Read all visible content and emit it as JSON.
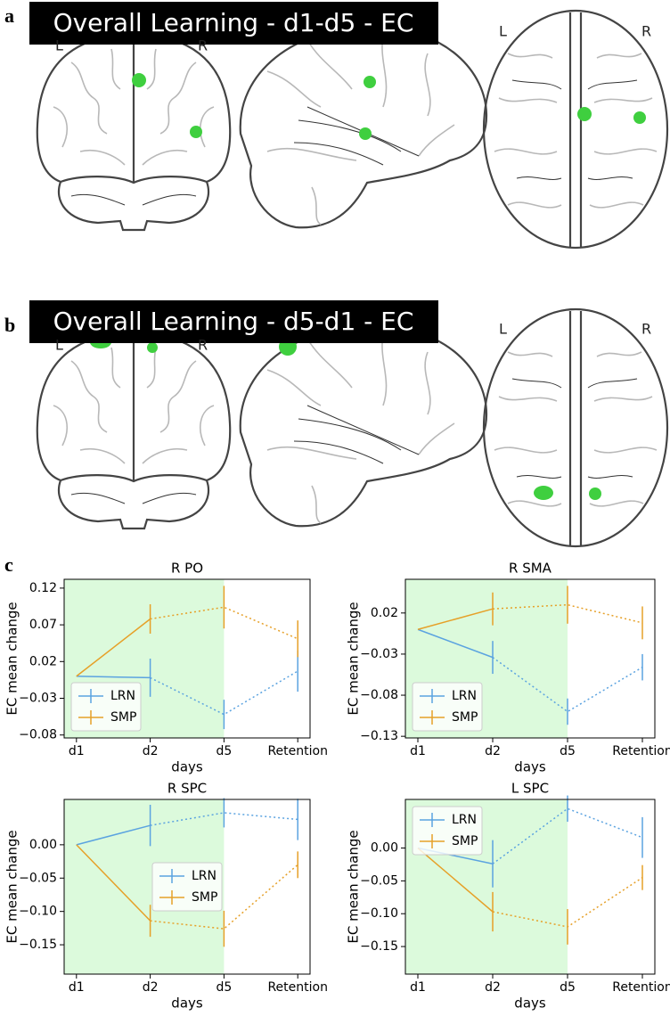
{
  "panels": [
    {
      "label": "a",
      "title": "Overall Learning - d1-d5 - EC",
      "coronal": [
        "L",
        "R"
      ],
      "axial": [
        "L",
        "R"
      ]
    },
    {
      "label": "b",
      "title": "Overall Learning - d5-d1 - EC",
      "coronal": [
        "L",
        "R"
      ],
      "axial": [
        "L",
        "R"
      ]
    },
    {
      "label": "c"
    }
  ],
  "chart_data": [
    {
      "type": "line",
      "title": "R PO",
      "xlabel": "days",
      "ylabel": "EC mean change",
      "categories": [
        "d1",
        "d2",
        "d5",
        "Retention"
      ],
      "ylim": [
        -0.084,
        0.132
      ],
      "yticks": [
        0.12,
        0.07,
        0.02,
        {
          "value": -0.03,
          "label": "−0.03"
        },
        {
          "value": -0.08,
          "label": "−0.08"
        }
      ],
      "legend": "lower left",
      "series": [
        {
          "name": "LRN",
          "color": "#5ba3e0",
          "values": [
            0.0,
            -0.002,
            -0.052,
            0.007
          ],
          "errors": [
            null,
            0.026,
            0.02,
            0.028
          ]
        },
        {
          "name": "SMP",
          "color": "#e6a028",
          "values": [
            0.0,
            0.078,
            0.094,
            0.051
          ],
          "errors": [
            null,
            0.02,
            0.029,
            0.025
          ]
        }
      ]
    },
    {
      "type": "line",
      "title": "R SMA",
      "xlabel": "days",
      "ylabel": "EC mean change",
      "categories": [
        "d1",
        "d2",
        "d5",
        "Retention"
      ],
      "ylim": [
        -0.132,
        0.061
      ],
      "yticks": [
        0.02,
        {
          "value": -0.03,
          "label": "−0.03"
        },
        {
          "value": -0.08,
          "label": "−0.08"
        },
        {
          "value": -0.13,
          "label": "−0.13"
        }
      ],
      "legend": "lower left",
      "series": [
        {
          "name": "LRN",
          "color": "#5ba3e0",
          "values": [
            0.0,
            -0.034,
            -0.1,
            -0.046
          ],
          "errors": [
            null,
            0.02,
            0.016,
            0.016
          ]
        },
        {
          "name": "SMP",
          "color": "#e6a028",
          "values": [
            0.0,
            0.025,
            0.03,
            0.008
          ],
          "errors": [
            null,
            0.02,
            0.023,
            0.02
          ]
        }
      ]
    },
    {
      "type": "line",
      "title": "R SPC",
      "xlabel": "days",
      "ylabel": "EC mean change",
      "categories": [
        "d1",
        "d2",
        "d5",
        "Retention"
      ],
      "ylim": [
        -0.194,
        0.068
      ],
      "yticks": [
        {
          "value": 0,
          "label": "0.00"
        },
        {
          "value": -0.05,
          "label": "−0.05"
        },
        {
          "value": -0.1,
          "label": "−0.10"
        },
        {
          "value": -0.15,
          "label": "−0.15"
        }
      ],
      "legend": "center",
      "series": [
        {
          "name": "LRN",
          "color": "#5ba3e0",
          "values": [
            0.0,
            0.029,
            0.048,
            0.038
          ],
          "errors": [
            null,
            0.031,
            0.022,
            0.031
          ]
        },
        {
          "name": "SMP",
          "color": "#e6a028",
          "values": [
            0.0,
            -0.114,
            -0.126,
            -0.03
          ],
          "errors": [
            null,
            0.024,
            0.027,
            0.02
          ]
        }
      ]
    },
    {
      "type": "line",
      "title": "L SPC",
      "xlabel": "days",
      "ylabel": "EC mean change",
      "categories": [
        "d1",
        "d2",
        "d5",
        "Retention"
      ],
      "ylim": [
        -0.192,
        0.074
      ],
      "yticks": [
        {
          "value": 0,
          "label": "0.00"
        },
        {
          "value": -0.05,
          "label": "−0.05"
        },
        {
          "value": -0.1,
          "label": "−0.10"
        },
        {
          "value": -0.15,
          "label": "−0.15"
        }
      ],
      "legend": "upper left",
      "series": [
        {
          "name": "LRN",
          "color": "#5ba3e0",
          "values": [
            0.0,
            -0.024,
            0.06,
            0.016
          ],
          "errors": [
            null,
            0.036,
            0.02,
            0.031
          ]
        },
        {
          "name": "SMP",
          "color": "#e6a028",
          "values": [
            0.0,
            -0.097,
            -0.12,
            -0.045
          ],
          "errors": [
            null,
            0.03,
            0.027,
            0.019
          ]
        }
      ]
    }
  ]
}
